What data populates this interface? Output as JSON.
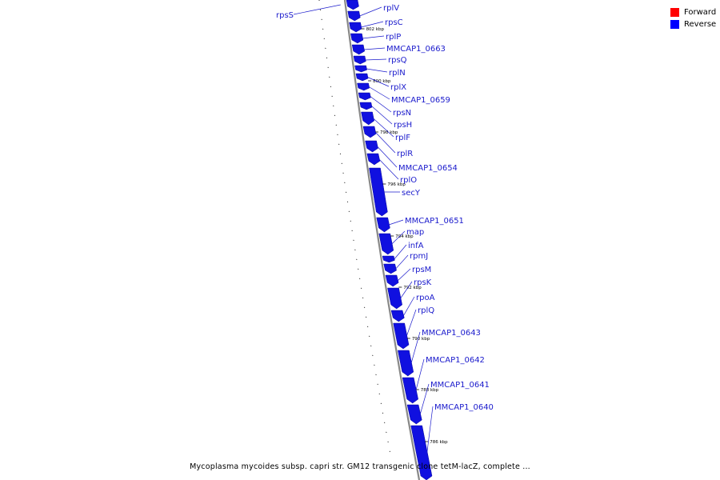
{
  "legend": {
    "items": [
      {
        "label": "Forward",
        "color": "#ff0000"
      },
      {
        "label": "Reverse",
        "color": "#0000ff"
      }
    ]
  },
  "caption": "Mycoplasma mycoides subsp. capri str. GM12 transgenic clone tetM-lacZ, complete ...",
  "colors": {
    "gene": "#1010e0",
    "backbone": "#888888",
    "label": "#1a1acc"
  },
  "genes": [
    {
      "name": "rpsS",
      "strand": "reverse"
    },
    {
      "name": "rplV",
      "strand": "reverse"
    },
    {
      "name": "rpsC",
      "strand": "reverse"
    },
    {
      "name": "rplP",
      "strand": "reverse"
    },
    {
      "name": "MMCAP1_0663",
      "strand": "reverse"
    },
    {
      "name": "rpsQ",
      "strand": "reverse"
    },
    {
      "name": "rplN",
      "strand": "reverse"
    },
    {
      "name": "rplX",
      "strand": "reverse"
    },
    {
      "name": "MMCAP1_0659",
      "strand": "reverse"
    },
    {
      "name": "rpsN",
      "strand": "reverse"
    },
    {
      "name": "rpsH",
      "strand": "reverse"
    },
    {
      "name": "rplF",
      "strand": "reverse"
    },
    {
      "name": "rplR",
      "strand": "reverse"
    },
    {
      "name": "MMCAP1_0654",
      "strand": "reverse"
    },
    {
      "name": "rplO",
      "strand": "reverse"
    },
    {
      "name": "secY",
      "strand": "reverse"
    },
    {
      "name": "MMCAP1_0651",
      "strand": "reverse"
    },
    {
      "name": "map",
      "strand": "reverse"
    },
    {
      "name": "infA",
      "strand": "reverse"
    },
    {
      "name": "rpmJ",
      "strand": "reverse"
    },
    {
      "name": "rpsM",
      "strand": "reverse"
    },
    {
      "name": "rpsK",
      "strand": "reverse"
    },
    {
      "name": "rpoA",
      "strand": "reverse"
    },
    {
      "name": "rplQ",
      "strand": "reverse"
    },
    {
      "name": "MMCAP1_0643",
      "strand": "reverse"
    },
    {
      "name": "MMCAP1_0642",
      "strand": "reverse"
    },
    {
      "name": "MMCAP1_0641",
      "strand": "reverse"
    },
    {
      "name": "MMCAP1_0640",
      "strand": "reverse"
    }
  ],
  "ticks": [
    "802 kbp",
    "800 kbp",
    "798 kbp",
    "796 kbp",
    "794 kbp",
    "792 kbp",
    "790 kbp",
    "788 kbp",
    "786 kbp"
  ]
}
